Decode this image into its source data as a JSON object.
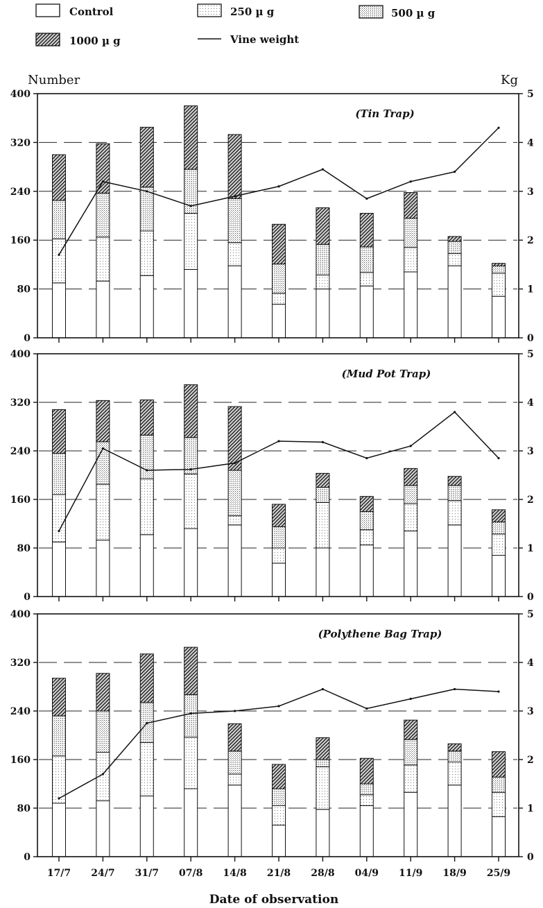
{
  "legend": [
    {
      "label": "Control",
      "pattern": "control"
    },
    {
      "label": "250 µ g",
      "pattern": "d250"
    },
    {
      "label": "500 µ g",
      "pattern": "d500"
    },
    {
      "label": "1000 µ g",
      "pattern": "d1000"
    },
    {
      "label": "Vine weight",
      "pattern": "line"
    }
  ],
  "left_axis_unit": "Number",
  "right_axis_unit": "Kg",
  "x_axis_title": "Date of observation",
  "colors": {
    "ink": "#111111",
    "background": "#ffffff",
    "stipple": "#555555"
  },
  "chart_data": [
    {
      "type": "bar",
      "stacked": true,
      "title": "(Tin Trap)",
      "categories": [
        "17/7",
        "24/7",
        "31/7",
        "07/8",
        "14/8",
        "21/8",
        "28/8",
        "04/9",
        "11/9",
        "18/9",
        "25/9"
      ],
      "series": [
        {
          "name": "Control",
          "values": [
            90,
            93,
            102,
            112,
            118,
            55,
            80,
            85,
            108,
            118,
            68
          ]
        },
        {
          "name": "250 µ g",
          "values": [
            72,
            72,
            73,
            92,
            38,
            18,
            23,
            22,
            40,
            20,
            38
          ]
        },
        {
          "name": "500 µ g",
          "values": [
            63,
            72,
            72,
            72,
            72,
            48,
            50,
            42,
            48,
            20,
            12
          ]
        },
        {
          "name": "1000 µ g",
          "values": [
            75,
            81,
            98,
            104,
            105,
            65,
            60,
            55,
            42,
            8,
            4
          ]
        }
      ],
      "line": {
        "name": "Vine weight",
        "axis": "right",
        "values": [
          1.7,
          3.2,
          3.0,
          2.7,
          2.9,
          3.1,
          3.45,
          2.85,
          3.2,
          3.4,
          4.3
        ]
      },
      "ylim": [
        0,
        400
      ],
      "yticks": [
        0,
        80,
        160,
        240,
        320,
        400
      ],
      "y2lim": [
        0,
        5
      ],
      "y2ticks": [
        0,
        1,
        2,
        3,
        4,
        5
      ]
    },
    {
      "type": "bar",
      "stacked": true,
      "title": "(Mud Pot Trap)",
      "categories": [
        "17/7",
        "24/7",
        "31/7",
        "07/8",
        "14/8",
        "21/8",
        "28/8",
        "04/9",
        "11/9",
        "18/9",
        "25/9"
      ],
      "series": [
        {
          "name": "Control",
          "values": [
            90,
            93,
            102,
            112,
            118,
            55,
            80,
            85,
            108,
            118,
            68
          ]
        },
        {
          "name": "250 µ g",
          "values": [
            78,
            92,
            92,
            90,
            15,
            25,
            75,
            25,
            45,
            40,
            35
          ]
        },
        {
          "name": "500 µ g",
          "values": [
            68,
            70,
            72,
            60,
            75,
            35,
            25,
            30,
            30,
            25,
            20
          ]
        },
        {
          "name": "1000 µ g",
          "values": [
            72,
            68,
            58,
            87,
            105,
            37,
            23,
            25,
            28,
            15,
            20
          ]
        }
      ],
      "line": {
        "name": "Vine weight",
        "axis": "right",
        "values": [
          1.35,
          3.05,
          2.6,
          2.62,
          2.75,
          3.2,
          3.18,
          2.85,
          3.1,
          3.8,
          2.85
        ]
      },
      "ylim": [
        0,
        400
      ],
      "yticks": [
        0,
        80,
        160,
        240,
        320,
        400
      ],
      "y2lim": [
        0,
        5
      ],
      "y2ticks": [
        0,
        1,
        2,
        3,
        4,
        5
      ]
    },
    {
      "type": "bar",
      "stacked": true,
      "title": "(Polythene Bag Trap)",
      "categories": [
        "17/7",
        "24/7",
        "31/7",
        "07/8",
        "14/8",
        "21/8",
        "28/8",
        "04/9",
        "11/9",
        "18/9",
        "25/9"
      ],
      "series": [
        {
          "name": "Control",
          "values": [
            88,
            92,
            100,
            112,
            118,
            52,
            78,
            84,
            106,
            118,
            66
          ]
        },
        {
          "name": "250 µ g",
          "values": [
            78,
            80,
            88,
            85,
            18,
            32,
            70,
            18,
            45,
            38,
            40
          ]
        },
        {
          "name": "500 µ g",
          "values": [
            66,
            68,
            66,
            70,
            38,
            28,
            12,
            18,
            42,
            18,
            25
          ]
        },
        {
          "name": "1000 µ g",
          "values": [
            62,
            62,
            80,
            78,
            45,
            40,
            36,
            42,
            32,
            12,
            42
          ]
        }
      ],
      "line": {
        "name": "Vine weight",
        "axis": "right",
        "values": [
          1.2,
          1.7,
          2.75,
          2.95,
          3.0,
          3.1,
          3.45,
          3.05,
          3.25,
          3.45,
          3.4
        ]
      },
      "ylim": [
        0,
        400
      ],
      "yticks": [
        0,
        80,
        160,
        240,
        320,
        400
      ],
      "y2lim": [
        0,
        5
      ],
      "y2ticks": [
        0,
        1,
        2,
        3,
        4,
        5
      ]
    }
  ]
}
